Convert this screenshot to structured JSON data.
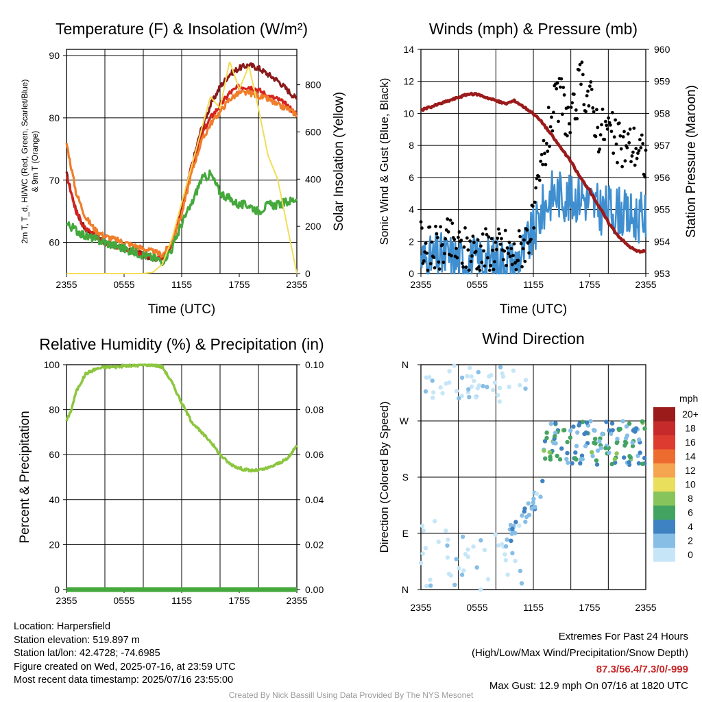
{
  "colors": {
    "temp": "#d4231e",
    "heat_index": "#8b1a1a",
    "dewpoint": "#45a83c",
    "temp_9m": "#f07d2a",
    "solar": "#f2dd55",
    "wind": "#3f8fd0",
    "gust": "#000000",
    "pressure": "#9b1a1a",
    "rh": "#8cc63f",
    "precip": "#45a83c"
  },
  "time_ticks": [
    "2355",
    "0555",
    "1155",
    "1755",
    "2355"
  ],
  "time_axis_label": "Time (UTC)",
  "chart_data": [
    {
      "type": "line",
      "title": "Temperature (F) & Insolation (W/m²)",
      "xlabel": "Time (UTC)",
      "ylabel": "2m T, Td, HI/WC (Red, Green, Scarlet/Blue) & 9m T (Orange)",
      "ylabel_line1": "2m T, T_d, HI/WC (Red, Green, Scarlet/Blue)",
      "ylabel_line2": "& 9m T (Orange)",
      "ylabel_right": "Solar Insolation (Yellow)",
      "x_hours_since_2355": [
        0,
        1,
        2,
        3,
        4,
        5,
        6,
        7,
        8,
        9,
        10,
        11,
        12,
        13,
        14,
        15,
        16,
        17,
        18,
        19,
        20,
        21,
        22,
        23,
        24
      ],
      "ylim": [
        55,
        91
      ],
      "y_ticks": [
        60,
        70,
        80,
        90
      ],
      "ylim_right": [
        0,
        950
      ],
      "y_ticks_right": [
        0,
        200,
        400,
        600,
        800
      ],
      "series": [
        {
          "key": "heat_index",
          "axis": "left",
          "values": [
            71,
            65,
            62,
            61,
            60,
            59.5,
            59,
            58.5,
            58,
            57.5,
            57.5,
            60,
            65,
            72,
            78,
            82,
            85,
            87,
            88,
            88.5,
            88,
            87,
            86,
            84.5,
            83
          ]
        },
        {
          "key": "temp",
          "axis": "left",
          "values": [
            71,
            65,
            62,
            61,
            60,
            59.5,
            59,
            58.5,
            58,
            57.5,
            57.5,
            60,
            65,
            72,
            77,
            80,
            82,
            84,
            85,
            85,
            84.5,
            83.5,
            83,
            82,
            80.5
          ]
        },
        {
          "key": "temp_9m",
          "axis": "left",
          "values": [
            76,
            68,
            64,
            62,
            61,
            60.5,
            60,
            59.5,
            59,
            58.5,
            58,
            60,
            64.5,
            71,
            76,
            79,
            81,
            83,
            84,
            84,
            83.5,
            83,
            82,
            81.5,
            80.5
          ]
        },
        {
          "key": "dewpoint",
          "axis": "left",
          "values": [
            63,
            62,
            61,
            60.5,
            60,
            59.5,
            59,
            58.5,
            58,
            57.5,
            57,
            59,
            63,
            66,
            70,
            71,
            68,
            67,
            66,
            66,
            65,
            66,
            66,
            66.5,
            67
          ]
        },
        {
          "key": "solar",
          "axis": "right",
          "values": [
            0,
            0,
            0,
            0,
            0,
            0,
            0,
            0,
            0,
            5,
            40,
            150,
            300,
            450,
            600,
            750,
            700,
            900,
            780,
            880,
            700,
            500,
            400,
            200,
            0
          ]
        }
      ]
    },
    {
      "type": "scatter",
      "title": "Winds (mph) & Pressure (mb)",
      "xlabel": "Time (UTC)",
      "ylabel": "Sonic Wind & Gust (Blue, Black)",
      "ylabel_right": "Station Pressure (Maroon)",
      "x_hours_since_2355": [
        0,
        1,
        2,
        3,
        4,
        5,
        6,
        7,
        8,
        9,
        10,
        11,
        12,
        13,
        14,
        15,
        16,
        17,
        18,
        19,
        20,
        21,
        22,
        23,
        24
      ],
      "ylim": [
        0,
        14
      ],
      "y_ticks": [
        0,
        2,
        4,
        6,
        8,
        10,
        12,
        14
      ],
      "ylim_right": [
        953,
        960
      ],
      "y_ticks_right": [
        953,
        954,
        955,
        956,
        957,
        958,
        959,
        960
      ],
      "series": [
        {
          "key": "gust",
          "axis": "left",
          "values": [
            2,
            1.5,
            1.5,
            2,
            1.5,
            1.5,
            1.5,
            1.5,
            1.5,
            1.5,
            1,
            2,
            3,
            7,
            10,
            11,
            9,
            12,
            11,
            9,
            9,
            8,
            8,
            8,
            7
          ]
        },
        {
          "key": "wind",
          "axis": "left",
          "values": [
            1,
            0.8,
            1,
            1,
            0.8,
            0.8,
            0.8,
            0.8,
            0.8,
            0.8,
            0.6,
            1.5,
            2.5,
            4,
            5,
            5,
            4.5,
            5,
            4.5,
            4,
            4,
            4,
            3.5,
            3.5,
            3.5
          ]
        },
        {
          "key": "pressure",
          "axis": "right",
          "values": [
            958.1,
            958.2,
            958.3,
            958.4,
            958.5,
            958.6,
            958.6,
            958.5,
            958.4,
            958.3,
            958.4,
            958.2,
            958.0,
            957.7,
            957.3,
            956.9,
            956.5,
            956.0,
            955.6,
            955.1,
            954.6,
            954.2,
            953.9,
            953.7,
            953.7
          ]
        }
      ]
    },
    {
      "type": "line",
      "title": "Relative Humidity (%) & Precipitation (in)",
      "ylabel": "Percent & Precipitation",
      "x_hours_since_2355": [
        0,
        0.5,
        1,
        2,
        3,
        4,
        5,
        6,
        7,
        8,
        9,
        10,
        11,
        12,
        13,
        14,
        15,
        16,
        17,
        18,
        19,
        20,
        21,
        22,
        23,
        24
      ],
      "ylim": [
        0,
        100
      ],
      "y_ticks": [
        0,
        20,
        40,
        60,
        80,
        100
      ],
      "ylim_right": [
        0,
        0.1
      ],
      "y_ticks_right": [
        "0.00",
        "0.02",
        "0.04",
        "0.06",
        "0.08",
        "0.10"
      ],
      "series": [
        {
          "key": "rh",
          "axis": "left",
          "values": [
            75,
            80,
            88,
            96,
            98,
            99,
            99,
            99.5,
            99.5,
            100,
            100,
            99,
            92,
            83,
            75,
            70,
            66,
            60,
            56,
            54,
            53,
            53,
            54,
            56,
            58,
            64
          ]
        },
        {
          "key": "precip",
          "axis": "right",
          "values": [
            0,
            0,
            0,
            0,
            0,
            0,
            0,
            0,
            0,
            0,
            0,
            0,
            0,
            0,
            0,
            0,
            0,
            0,
            0,
            0,
            0,
            0,
            0,
            0,
            0,
            0
          ]
        }
      ]
    },
    {
      "type": "scatter",
      "title": "Wind Direction",
      "ylabel": "Direction (Colored By Speed)",
      "y_ticks": [
        "N",
        "E",
        "S",
        "W",
        "N"
      ],
      "ylim_degrees": [
        0,
        360
      ],
      "legend": {
        "unit": "mph",
        "labels": [
          "20+",
          "18",
          "16",
          "14",
          "12",
          "10",
          "8",
          "6",
          "4",
          "2",
          "0"
        ],
        "colors": [
          "#9b1b1b",
          "#c62a2a",
          "#dd3b2f",
          "#ee6b2f",
          "#f5a450",
          "#e9df5d",
          "#87c55c",
          "#43a461",
          "#3f82c2",
          "#86bee6",
          "#c6e6f8"
        ]
      },
      "direction_degrees_by_time_band": [
        {
          "band": "overnight",
          "values_deg": [
            350,
            355,
            340,
            20,
            40,
            60,
            10,
            345,
            30,
            80
          ]
        },
        {
          "band": "late_morning",
          "values_deg": [
            120,
            140,
            160,
            170,
            180
          ]
        },
        {
          "band": "afternoon",
          "values_deg": [
            190,
            200,
            210,
            220,
            230,
            240,
            250,
            260,
            270
          ]
        }
      ]
    }
  ],
  "footer": {
    "location": "Location: Harpersfield",
    "elevation": "Station elevation: 519.897 m",
    "latlon": "Station lat/lon: 42.4728; -74.6985",
    "created": "Figure created on Wed, 2025-07-16, at 23:59 UTC",
    "recent": "Most recent data timestamp: 2025/07/16 23:55:00",
    "extremes_title": "Extremes For Past 24 Hours",
    "extremes_sub": "(High/Low/Max Wind/Precipitation/Snow Depth)",
    "extremes_values": "87.3/56.4/7.3/0/-999",
    "max_gust": "Max Gust: 12.9 mph On 07/16 at 1820 UTC",
    "credit": "Created By Nick Bassill Using Data Provided By The NYS Mesonet"
  }
}
